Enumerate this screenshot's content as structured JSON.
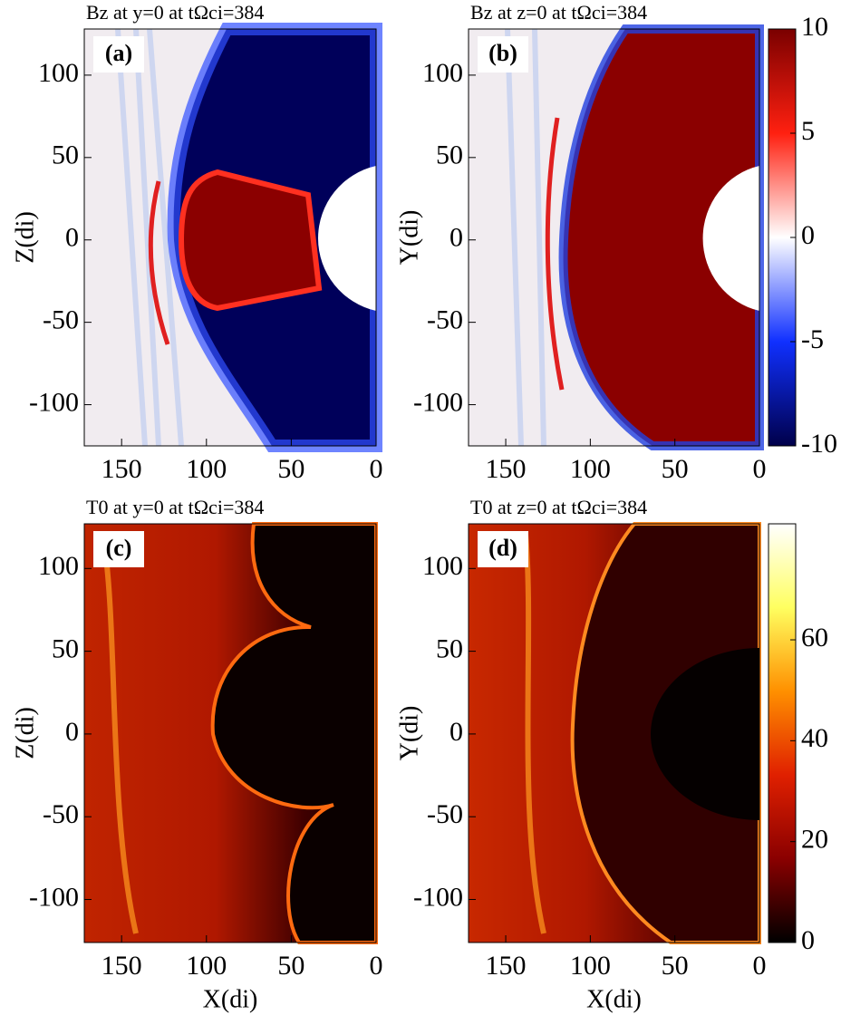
{
  "chart_data": [
    {
      "type": "heatmap",
      "title": "Bz at y=0 at   tΩci=384",
      "panel_label": "(a)",
      "ylabel": "Z(di)",
      "xlim": [
        172,
        0
      ],
      "ylim": [
        -125,
        128
      ],
      "xticks": [
        150,
        100,
        50,
        0
      ],
      "yticks": [
        100,
        50,
        0,
        -50,
        -100
      ]
    },
    {
      "type": "heatmap",
      "title": "Bz at z=0 at   tΩci=384",
      "panel_label": "(b)",
      "ylabel": "Y(di)",
      "xlim": [
        172,
        0
      ],
      "ylim": [
        -125,
        128
      ],
      "xticks": [
        150,
        100,
        50,
        0
      ],
      "yticks": [
        100,
        50,
        0,
        -50,
        -100
      ],
      "colorbar": {
        "clim": [
          -10,
          10
        ],
        "ticks": [
          10,
          5,
          0,
          -5,
          -10
        ],
        "colors": [
          "#00004a",
          "#1030ff",
          "#ffffff",
          "#ff2010",
          "#7a0000"
        ]
      }
    },
    {
      "type": "heatmap",
      "title": "T0 at y=0 at   tΩci=384",
      "panel_label": "(c)",
      "ylabel": "Z(di)",
      "xlabel": "X(di)",
      "xlim": [
        172,
        0
      ],
      "ylim": [
        -126,
        127
      ],
      "xticks": [
        150,
        100,
        50,
        0
      ],
      "yticks": [
        100,
        50,
        0,
        -50,
        -100
      ]
    },
    {
      "type": "heatmap",
      "title": "T0 at z=0 at   tΩci=384",
      "panel_label": "(d)",
      "ylabel": "Y(di)",
      "xlabel": "X(di)",
      "xlim": [
        172,
        0
      ],
      "ylim": [
        -126,
        127
      ],
      "xticks": [
        150,
        100,
        50,
        0
      ],
      "yticks": [
        100,
        50,
        0,
        -50,
        -100
      ],
      "colorbar": {
        "clim": [
          0,
          83
        ],
        "ticks": [
          0,
          20,
          40,
          60
        ],
        "colors": [
          "#000000",
          "#8a0000",
          "#e02000",
          "#ff9000",
          "#ffff60",
          "#ffffff"
        ]
      }
    }
  ]
}
